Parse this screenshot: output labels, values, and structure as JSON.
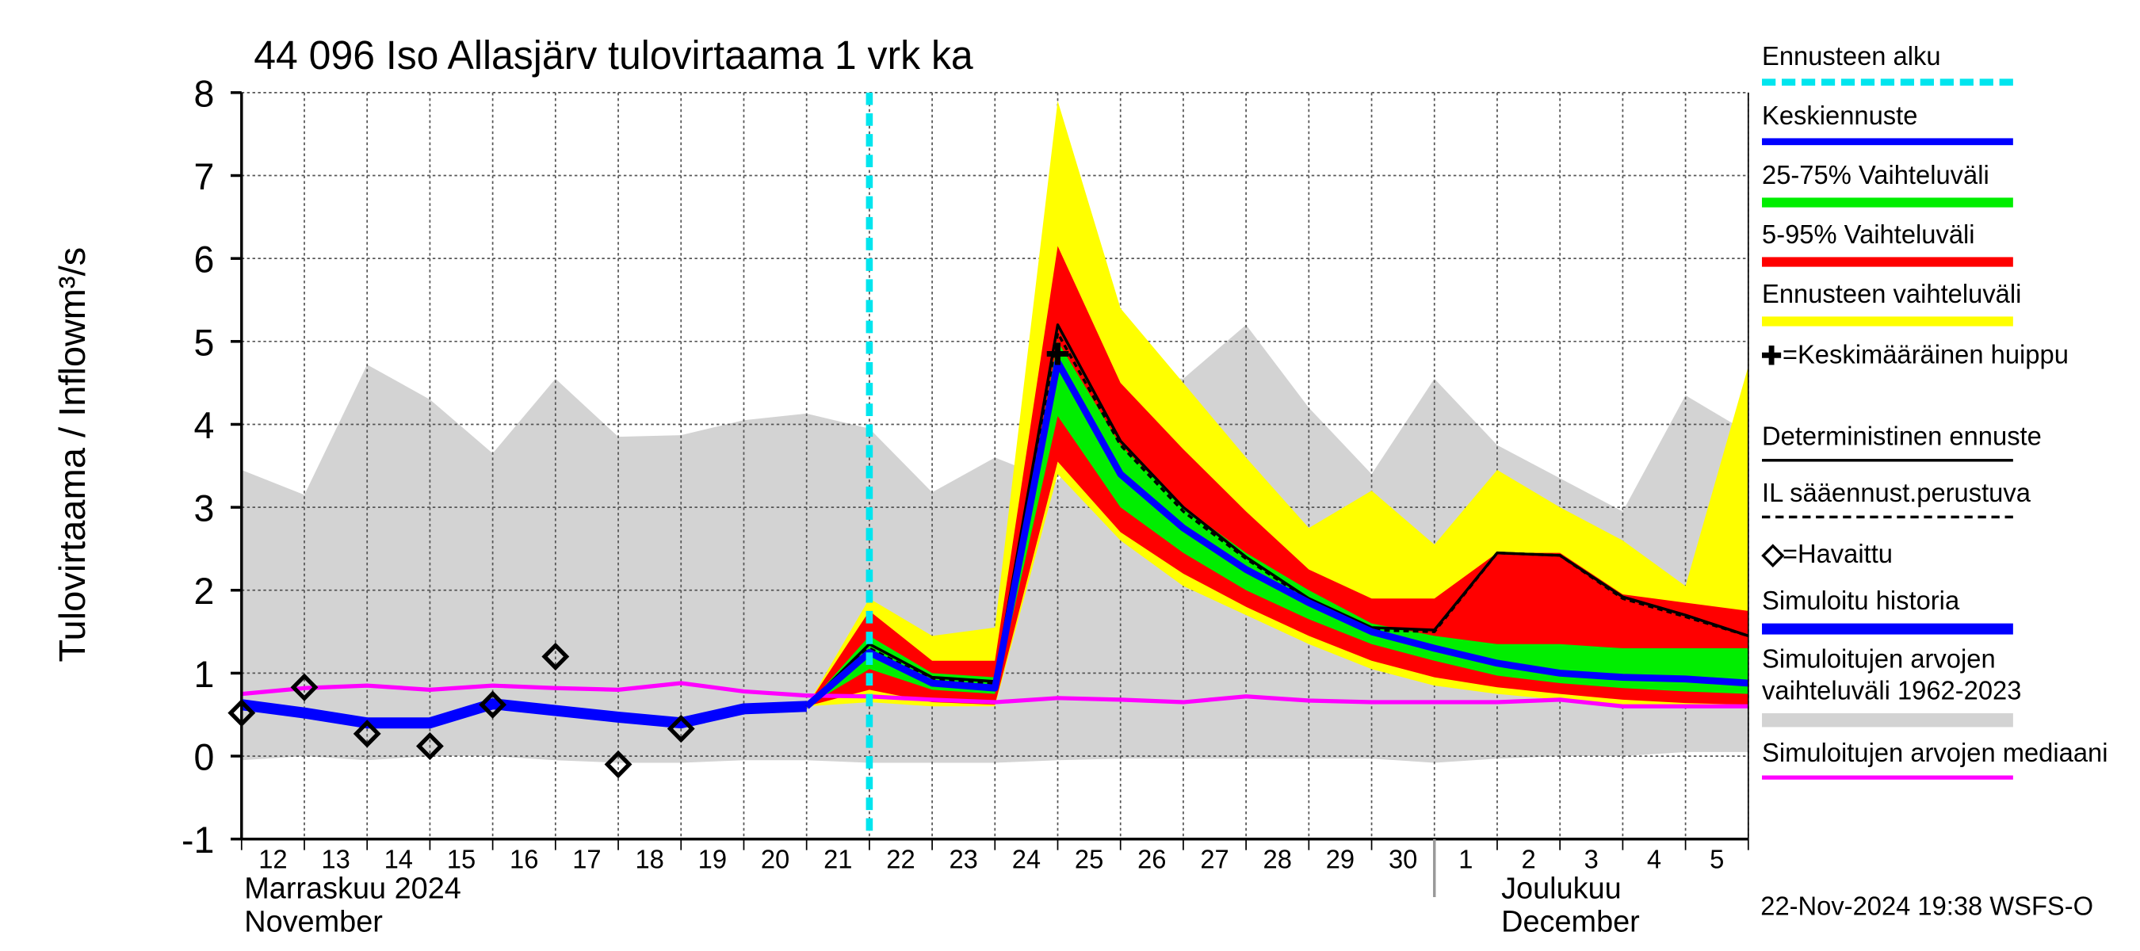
{
  "chart_data": {
    "type": "line",
    "title": "44 096 Iso Allasjärv tulovirtaama 1 vrk ka",
    "ylabel": "Tulovirtaama / Inflow",
    "yunit": "m³/s",
    "categories": [
      "12",
      "13",
      "14",
      "15",
      "16",
      "17",
      "18",
      "19",
      "20",
      "21",
      "22",
      "23",
      "24",
      "25",
      "26",
      "27",
      "28",
      "29",
      "30",
      "1",
      "2",
      "3",
      "4",
      "5",
      null
    ],
    "months": [
      [
        "Marraskuu 2024",
        "November"
      ],
      [
        "Joulukuu",
        "December"
      ]
    ],
    "ylim": [
      -1,
      8
    ],
    "yticks": [
      -1,
      0,
      1,
      2,
      3,
      4,
      5,
      6,
      7,
      8
    ],
    "grid": true,
    "forecast_start": {
      "name": "Ennusteen alku",
      "color": "#00e5ee",
      "category": "22"
    },
    "bands": [
      {
        "name": "Simuloitujen arvojen vaihteluväli 1962-2023",
        "color": "#d3d3d3",
        "upper": [
          3.45,
          3.15,
          4.72,
          4.3,
          3.65,
          4.55,
          3.85,
          3.87,
          4.05,
          4.13,
          3.95,
          3.18,
          3.6,
          3.3,
          4.6,
          4.55,
          5.2,
          4.2,
          3.4,
          4.55,
          3.75,
          3.35,
          2.95,
          4.35,
          3.9
        ],
        "lower": [
          -0.05,
          0,
          -0.05,
          0,
          0,
          -0.05,
          -0.08,
          -0.08,
          -0.05,
          -0.05,
          -0.08,
          -0.08,
          -0.08,
          -0.05,
          -0.03,
          -0.03,
          -0.03,
          -0.03,
          -0.03,
          -0.08,
          -0.03,
          0,
          0,
          0.05,
          0.05
        ]
      },
      {
        "name": "Ennusteen vaihteluväli",
        "color": "#ffff00",
        "upper": [
          null,
          null,
          null,
          null,
          null,
          null,
          null,
          null,
          null,
          0.6,
          1.9,
          1.45,
          1.55,
          7.9,
          5.4,
          4.5,
          3.6,
          2.75,
          3.2,
          2.55,
          3.45,
          3.0,
          2.6,
          2.05,
          4.7
        ],
        "lower": [
          null,
          null,
          null,
          null,
          null,
          null,
          null,
          null,
          null,
          0.6,
          0.65,
          0.6,
          0.6,
          3.4,
          2.6,
          2.05,
          1.7,
          1.35,
          1.05,
          0.85,
          0.75,
          0.68,
          0.62,
          0.6,
          0.58
        ]
      },
      {
        "name": "5-95% Vaihteluväli",
        "color": "#ff0000",
        "upper": [
          null,
          null,
          null,
          null,
          null,
          null,
          null,
          null,
          null,
          0.6,
          1.75,
          1.15,
          1.15,
          6.15,
          4.5,
          3.7,
          2.95,
          2.25,
          1.9,
          1.9,
          2.45,
          2.45,
          1.95,
          1.85,
          1.75
        ],
        "lower": [
          null,
          null,
          null,
          null,
          null,
          null,
          null,
          null,
          null,
          0.6,
          0.8,
          0.65,
          0.62,
          3.55,
          2.7,
          2.2,
          1.8,
          1.45,
          1.15,
          0.95,
          0.83,
          0.75,
          0.68,
          0.64,
          0.62
        ]
      },
      {
        "name": "25-75% Vaihteluväli",
        "color": "#00ee00",
        "upper": [
          null,
          null,
          null,
          null,
          null,
          null,
          null,
          null,
          null,
          0.6,
          1.45,
          1.0,
          0.95,
          5.0,
          3.75,
          3.0,
          2.45,
          2.0,
          1.6,
          1.45,
          1.35,
          1.35,
          1.3,
          1.3,
          1.3
        ],
        "lower": [
          null,
          null,
          null,
          null,
          null,
          null,
          null,
          null,
          null,
          0.6,
          1.05,
          0.8,
          0.75,
          4.1,
          3.0,
          2.45,
          2.0,
          1.65,
          1.35,
          1.15,
          0.97,
          0.88,
          0.82,
          0.78,
          0.75
        ]
      }
    ],
    "series": [
      {
        "name": "Simuloitujen arvojen mediaani",
        "color": "#ff00ff",
        "values": [
          0.75,
          0.82,
          0.85,
          0.8,
          0.85,
          0.82,
          0.8,
          0.88,
          0.78,
          0.73,
          0.72,
          0.68,
          0.65,
          0.7,
          0.68,
          0.65,
          0.72,
          0.67,
          0.65,
          0.65,
          0.65,
          0.68,
          0.6,
          0.6,
          0.6
        ]
      },
      {
        "name": "Simuloitu historia",
        "color": "#0000ff",
        "values": [
          0.62,
          0.52,
          0.4,
          0.4,
          0.63,
          0.55,
          0.47,
          0.4,
          0.57,
          0.6,
          null,
          null,
          null,
          null,
          null,
          null,
          null,
          null,
          null,
          null,
          null,
          null,
          null,
          null,
          null
        ]
      },
      {
        "name": "Deterministinen ennuste",
        "color": "#000000",
        "values": [
          null,
          null,
          null,
          null,
          null,
          null,
          null,
          null,
          null,
          0.6,
          1.35,
          0.95,
          0.9,
          5.2,
          3.8,
          3.0,
          2.4,
          1.9,
          1.55,
          1.52,
          2.45,
          2.42,
          1.92,
          1.7,
          1.45
        ]
      },
      {
        "name": "IL sääennust.perustuva",
        "color": "#000000",
        "values": [
          null,
          null,
          null,
          null,
          null,
          null,
          null,
          null,
          null,
          0.6,
          1.3,
          0.92,
          0.88,
          5.1,
          3.75,
          2.95,
          2.38,
          1.88,
          1.52,
          1.5,
          2.45,
          2.42,
          1.9,
          1.68,
          1.45
        ]
      },
      {
        "name": "Keskiennuste",
        "color": "#0000ff",
        "values": [
          null,
          null,
          null,
          null,
          null,
          null,
          null,
          null,
          null,
          0.6,
          1.25,
          0.88,
          0.82,
          4.75,
          3.4,
          2.75,
          2.25,
          1.85,
          1.5,
          1.3,
          1.12,
          1.0,
          0.95,
          0.93,
          0.88
        ]
      }
    ],
    "peak": {
      "name": "=Keskimääräinen huippu",
      "category": "25",
      "value": 4.85
    },
    "observed": {
      "name": "=Havaittu",
      "values": [
        0.52,
        0.83,
        0.27,
        0.12,
        0.62,
        1.2,
        -0.1,
        0.33,
        null,
        null,
        null,
        null,
        null,
        null,
        null,
        null,
        null,
        null,
        null,
        null,
        null,
        null,
        null,
        null,
        null
      ]
    },
    "timestamp": "22-Nov-2024 19:38 WSFS-O"
  }
}
